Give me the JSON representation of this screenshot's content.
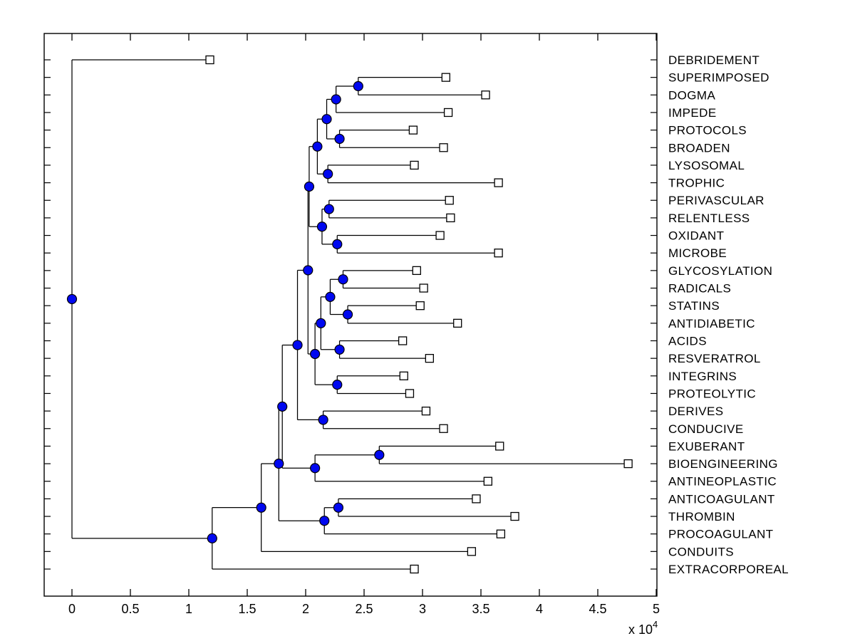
{
  "figure": {
    "background": "#ffffff",
    "axis_color": "#000000",
    "line_color": "#000000",
    "node_color": "#0008f0",
    "node_edge_color": "#000000",
    "leaf_marker_fill": "#ffffff",
    "leaf_marker_edge": "#000000",
    "multiplier_label": "x 10",
    "multiplier_exponent": "4"
  },
  "chart_data": {
    "type": "dendrogram",
    "orientation": "horizontal-leaves-right",
    "title": "",
    "xlabel": "x 10^4",
    "x_axis_scale_note": "distances shown in units of 10^4",
    "x_tick_labels": [
      "0",
      "0.5",
      "1",
      "1.5",
      "2",
      "2.5",
      "3",
      "3.5",
      "4",
      "4.5",
      "5"
    ],
    "x_tick_values": [
      0,
      0.5,
      1,
      1.5,
      2,
      2.5,
      3,
      3.5,
      4,
      4.5,
      5
    ],
    "xlim": [
      -0.24,
      5.0
    ],
    "grid": false,
    "leaves": [
      {
        "label": "DEBRIDEMENT",
        "height": 1.18
      },
      {
        "label": "SUPERIMPOSED",
        "height": 3.2
      },
      {
        "label": "DOGMA",
        "height": 3.54
      },
      {
        "label": "IMPEDE",
        "height": 3.22
      },
      {
        "label": "PROTOCOLS",
        "height": 2.92
      },
      {
        "label": "BROADEN",
        "height": 3.18
      },
      {
        "label": "LYSOSOMAL",
        "height": 2.93
      },
      {
        "label": "TROPHIC",
        "height": 3.65
      },
      {
        "label": "PERIVASCULAR",
        "height": 3.23
      },
      {
        "label": "RELENTLESS",
        "height": 3.24
      },
      {
        "label": "OXIDANT",
        "height": 3.15
      },
      {
        "label": "MICROBE",
        "height": 3.65
      },
      {
        "label": "GLYCOSYLATION",
        "height": 2.95
      },
      {
        "label": "RADICALS",
        "height": 3.01
      },
      {
        "label": "STATINS",
        "height": 2.98
      },
      {
        "label": "ANTIDIABETIC",
        "height": 3.3
      },
      {
        "label": "ACIDS",
        "height": 2.83
      },
      {
        "label": "RESVERATROL",
        "height": 3.06
      },
      {
        "label": "INTEGRINS",
        "height": 2.84
      },
      {
        "label": "PROTEOLYTIC",
        "height": 2.89
      },
      {
        "label": "DERIVES",
        "height": 3.03
      },
      {
        "label": "CONDUCIVE",
        "height": 3.18
      },
      {
        "label": "EXUBERANT",
        "height": 3.66
      },
      {
        "label": "BIOENGINEERING",
        "height": 4.76
      },
      {
        "label": "ANTINEOPLASTIC",
        "height": 3.56
      },
      {
        "label": "ANTICOAGULANT",
        "height": 3.46
      },
      {
        "label": "THROMBIN",
        "height": 3.79
      },
      {
        "label": "PROCOAGULANT",
        "height": 3.67
      },
      {
        "label": "CONDUITS",
        "height": 3.42
      },
      {
        "label": "EXTRACORPOREAL",
        "height": 2.93
      }
    ],
    "merges": [
      {
        "a": "L2",
        "b": "L3",
        "height": 2.45
      },
      {
        "a": "M1",
        "b": "L4",
        "height": 2.26
      },
      {
        "a": "L5",
        "b": "L6",
        "height": 2.29
      },
      {
        "a": "M2",
        "b": "M3",
        "height": 2.18
      },
      {
        "a": "L7",
        "b": "L8",
        "height": 2.19
      },
      {
        "a": "M4",
        "b": "M5",
        "height": 2.1
      },
      {
        "a": "L9",
        "b": "L10",
        "height": 2.2
      },
      {
        "a": "L11",
        "b": "L12",
        "height": 2.27
      },
      {
        "a": "M7",
        "b": "M8",
        "height": 2.14
      },
      {
        "a": "M6",
        "b": "M9",
        "height": 2.03
      },
      {
        "a": "L13",
        "b": "L14",
        "height": 2.32
      },
      {
        "a": "L15",
        "b": "L16",
        "height": 2.36
      },
      {
        "a": "M11",
        "b": "M12",
        "height": 2.21
      },
      {
        "a": "L17",
        "b": "L18",
        "height": 2.29
      },
      {
        "a": "M13",
        "b": "M14",
        "height": 2.13
      },
      {
        "a": "L19",
        "b": "L20",
        "height": 2.27
      },
      {
        "a": "M15",
        "b": "M16",
        "height": 2.08
      },
      {
        "a": "M10",
        "b": "M17",
        "height": 2.02
      },
      {
        "a": "L21",
        "b": "L22",
        "height": 2.15
      },
      {
        "a": "M18",
        "b": "M19",
        "height": 1.93
      },
      {
        "a": "L23",
        "b": "L24",
        "height": 2.63
      },
      {
        "a": "M21",
        "b": "L25",
        "height": 2.08
      },
      {
        "a": "M20",
        "b": "M22",
        "height": 1.8
      },
      {
        "a": "L26",
        "b": "L27",
        "height": 2.28
      },
      {
        "a": "M24",
        "b": "L28",
        "height": 2.16
      },
      {
        "a": "M23",
        "b": "M25",
        "height": 1.77
      },
      {
        "a": "M26",
        "b": "L29",
        "height": 1.62
      },
      {
        "a": "M27",
        "b": "L30",
        "height": 1.2
      },
      {
        "a": "L1",
        "b": "M28",
        "height": 0.0
      }
    ]
  }
}
